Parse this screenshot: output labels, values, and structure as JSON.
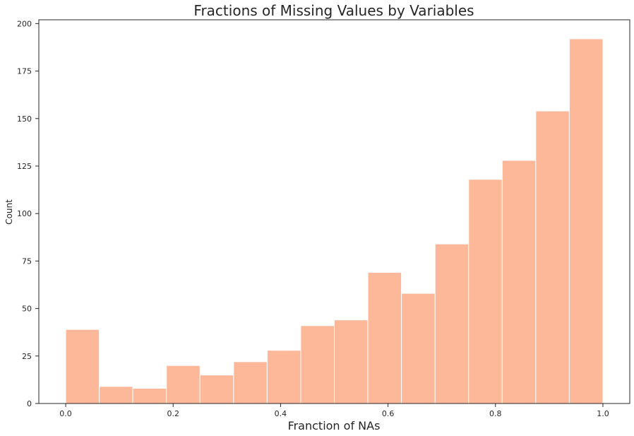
{
  "chart_data": {
    "type": "bar",
    "title": "Fractions of Missing Values by Variables",
    "xlabel": "Franction of NAs",
    "ylabel": "Count",
    "bin_edges": [
      0.0,
      0.0625,
      0.125,
      0.1875,
      0.25,
      0.3125,
      0.375,
      0.4375,
      0.5,
      0.5625,
      0.625,
      0.6875,
      0.75,
      0.8125,
      0.875,
      0.9375,
      1.0
    ],
    "values": [
      39,
      9,
      8,
      20,
      15,
      22,
      28,
      41,
      44,
      69,
      58,
      84,
      118,
      128,
      154,
      192
    ],
    "xlim": [
      -0.05,
      1.05
    ],
    "ylim": [
      0,
      202
    ],
    "xticks": [
      0.0,
      0.2,
      0.4,
      0.6,
      0.8,
      1.0
    ],
    "xtick_labels": [
      "0.0",
      "0.2",
      "0.4",
      "0.6",
      "0.8",
      "1.0"
    ],
    "yticks": [
      0,
      25,
      50,
      75,
      100,
      125,
      150,
      175,
      200
    ],
    "ytick_labels": [
      "0",
      "25",
      "50",
      "75",
      "100",
      "125",
      "150",
      "175",
      "200"
    ],
    "bar_color": "#fdb89a",
    "bar_edge_color": "#ffffff",
    "grid": false,
    "legend": false
  }
}
